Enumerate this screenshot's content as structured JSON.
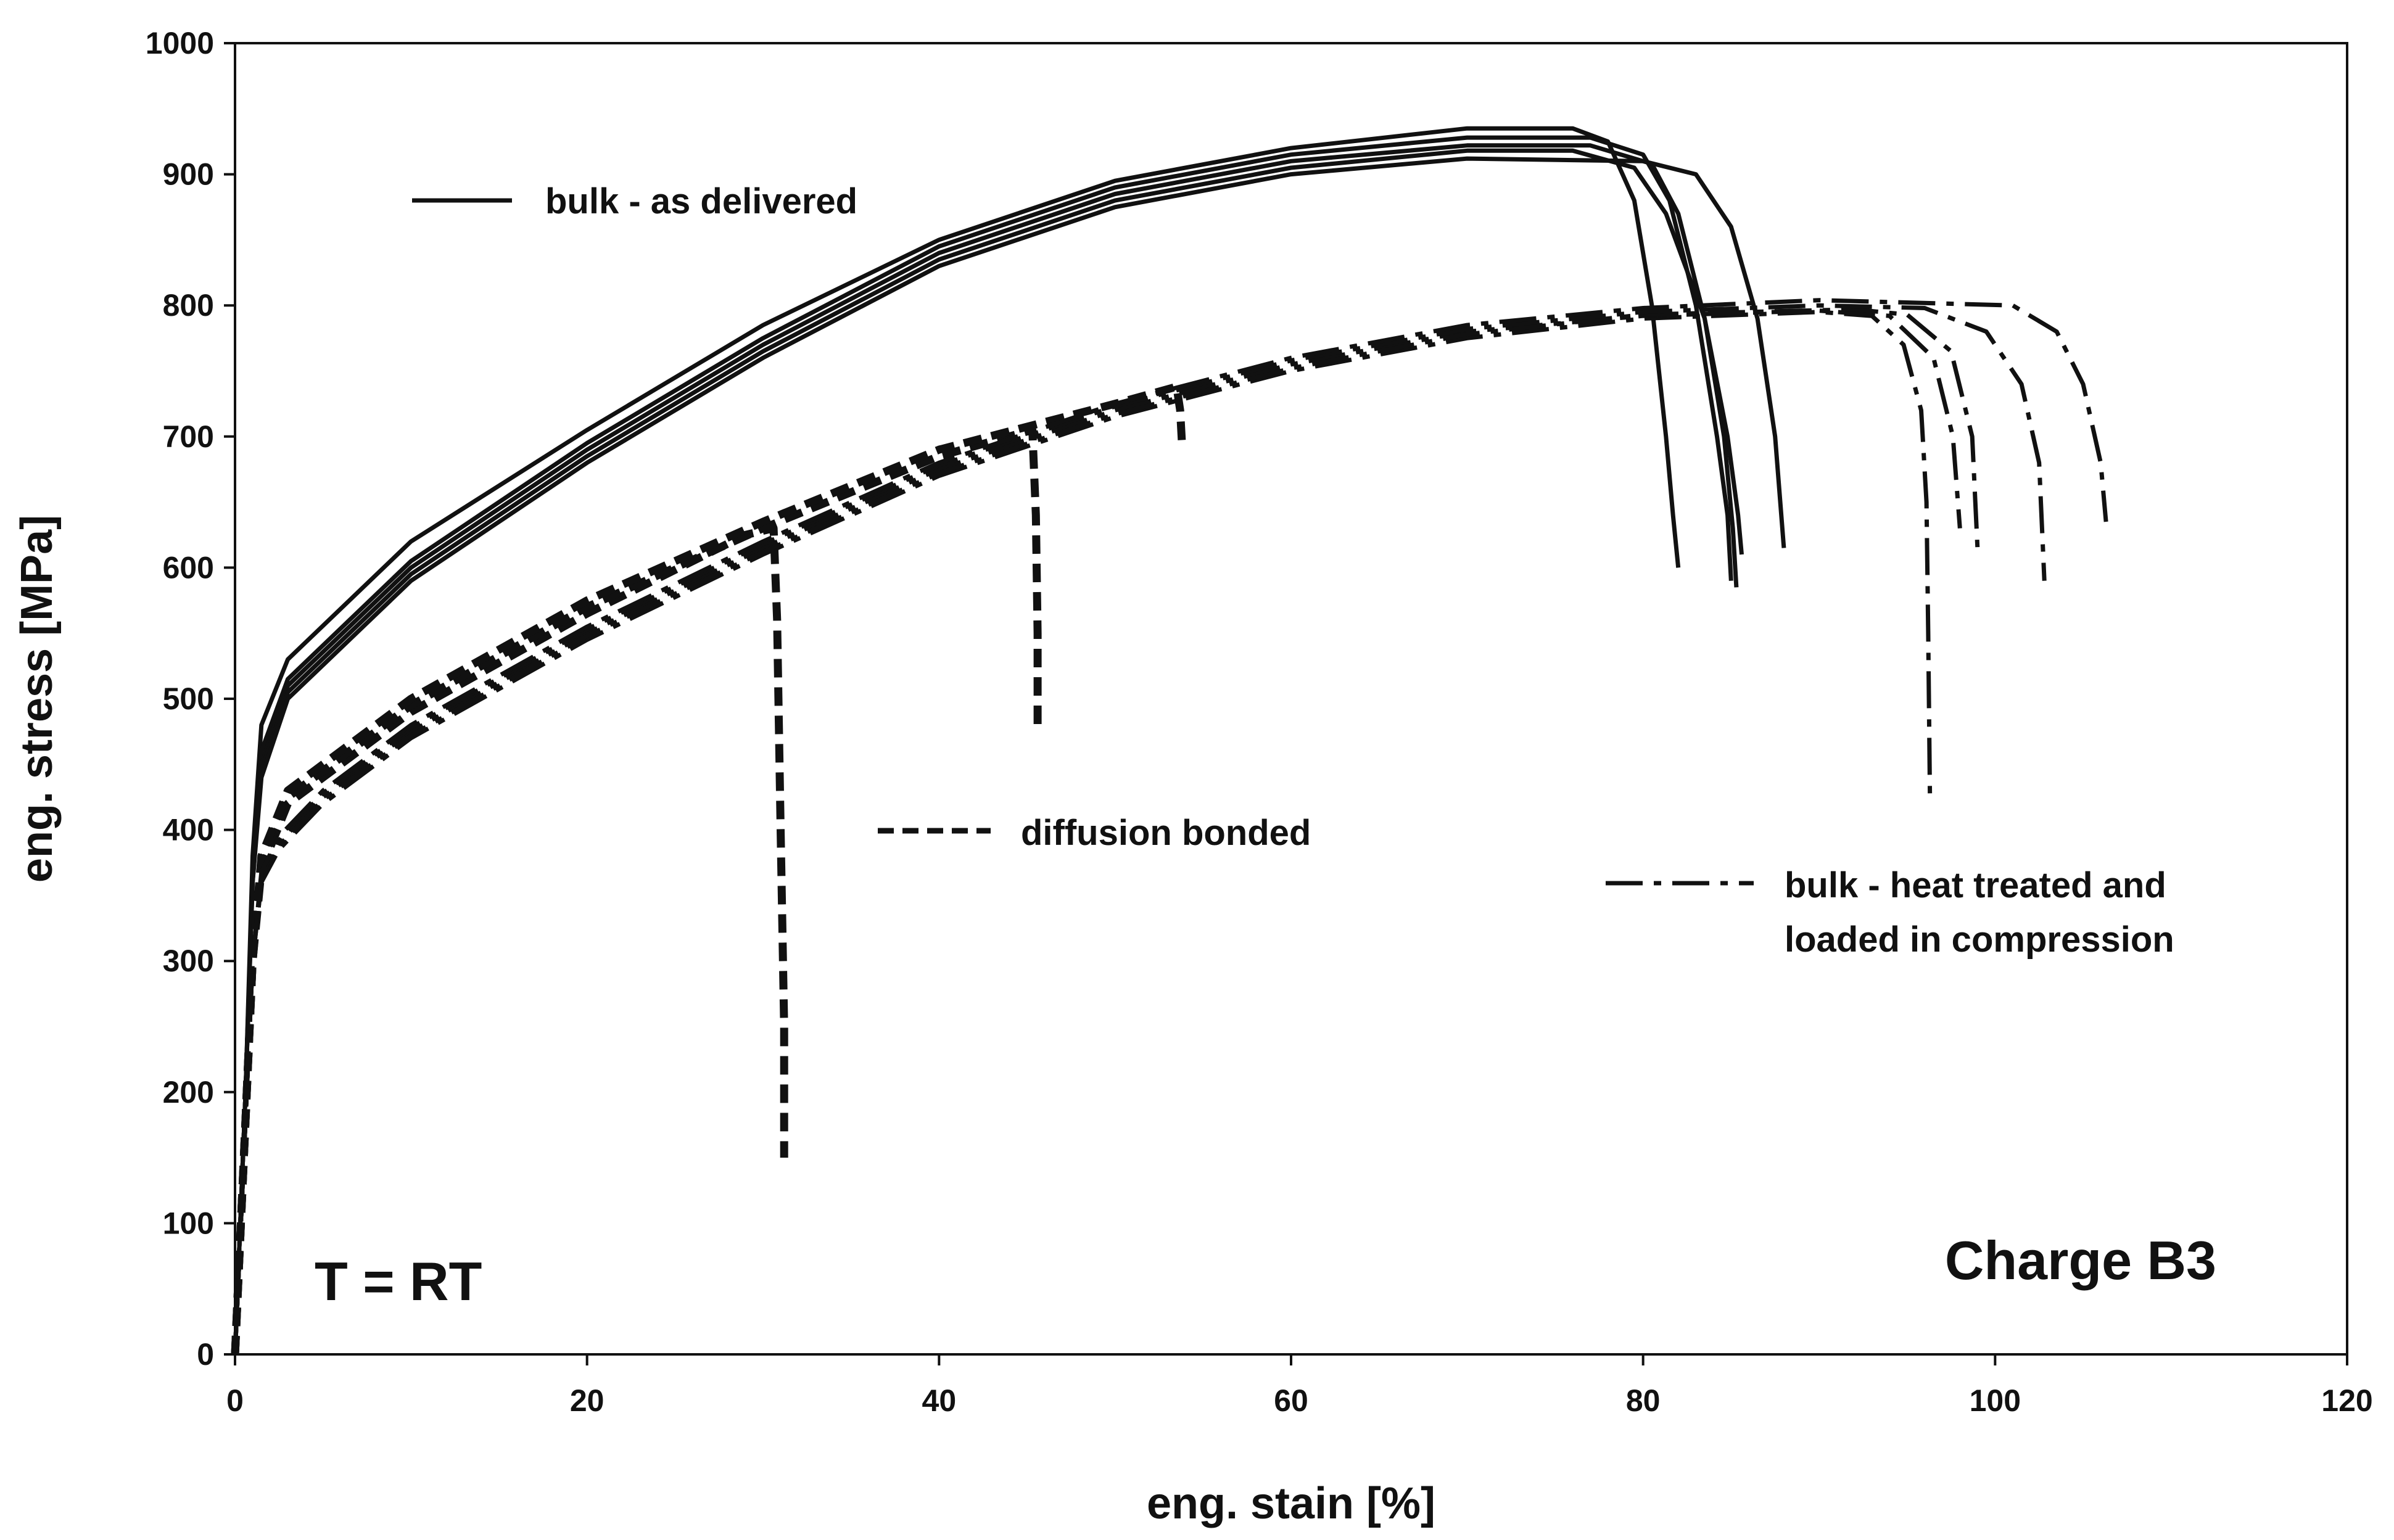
{
  "chart_data": {
    "type": "line",
    "title": "",
    "xlabel": "eng. stain [%]",
    "ylabel": "eng. stress [MPa]",
    "xlim": [
      0,
      120
    ],
    "ylim": [
      0,
      1000
    ],
    "xticks": [
      0,
      20,
      40,
      60,
      80,
      100,
      120
    ],
    "yticks": [
      0,
      100,
      200,
      300,
      400,
      500,
      600,
      700,
      800,
      900,
      1000
    ],
    "grid": false,
    "annotations": [
      "T = RT",
      "Charge B3"
    ],
    "legend_labels": {
      "bulk_as_delivered": "bulk - as delivered",
      "diffusion_bonded": "diffusion bonded",
      "heat_treated_line1": "bulk - heat treated and",
      "heat_treated_line2": "loaded in compression"
    },
    "series": [
      {
        "name": "bulk - as delivered #1",
        "group": "solid",
        "points": [
          [
            0,
            0
          ],
          [
            0.6,
            200
          ],
          [
            1.0,
            380
          ],
          [
            1.5,
            480
          ],
          [
            3,
            530
          ],
          [
            10,
            620
          ],
          [
            20,
            705
          ],
          [
            30,
            785
          ],
          [
            40,
            850
          ],
          [
            50,
            895
          ],
          [
            60,
            920
          ],
          [
            70,
            935
          ],
          [
            76,
            935
          ],
          [
            78,
            925
          ],
          [
            79.5,
            880
          ],
          [
            80.5,
            800
          ],
          [
            81.3,
            700
          ],
          [
            81.7,
            640
          ],
          [
            82,
            600
          ]
        ]
      },
      {
        "name": "bulk - as delivered #2",
        "group": "solid",
        "points": [
          [
            0,
            0
          ],
          [
            0.6,
            200
          ],
          [
            1.0,
            370
          ],
          [
            1.5,
            460
          ],
          [
            3,
            515
          ],
          [
            10,
            605
          ],
          [
            20,
            695
          ],
          [
            30,
            775
          ],
          [
            40,
            845
          ],
          [
            50,
            890
          ],
          [
            60,
            915
          ],
          [
            70,
            928
          ],
          [
            77,
            928
          ],
          [
            80,
            915
          ],
          [
            81.5,
            880
          ],
          [
            83,
            800
          ],
          [
            84.2,
            700
          ],
          [
            84.8,
            640
          ],
          [
            85,
            590
          ]
        ]
      },
      {
        "name": "bulk - as delivered #3",
        "group": "solid",
        "points": [
          [
            0,
            0
          ],
          [
            0.6,
            200
          ],
          [
            1.0,
            365
          ],
          [
            1.5,
            450
          ],
          [
            3,
            510
          ],
          [
            10,
            600
          ],
          [
            20,
            690
          ],
          [
            30,
            770
          ],
          [
            40,
            840
          ],
          [
            50,
            885
          ],
          [
            60,
            910
          ],
          [
            70,
            922
          ],
          [
            77,
            922
          ],
          [
            80.5,
            908
          ],
          [
            82,
            870
          ],
          [
            83.5,
            790
          ],
          [
            84.6,
            700
          ],
          [
            85.1,
            630
          ],
          [
            85.3,
            585
          ]
        ]
      },
      {
        "name": "bulk - as delivered #4",
        "group": "solid",
        "points": [
          [
            0,
            0
          ],
          [
            0.6,
            200
          ],
          [
            1.0,
            360
          ],
          [
            1.5,
            445
          ],
          [
            3,
            505
          ],
          [
            10,
            595
          ],
          [
            20,
            685
          ],
          [
            30,
            765
          ],
          [
            40,
            835
          ],
          [
            50,
            880
          ],
          [
            60,
            905
          ],
          [
            70,
            918
          ],
          [
            76,
            918
          ],
          [
            79.5,
            905
          ],
          [
            81.3,
            870
          ],
          [
            83.5,
            790
          ],
          [
            84.8,
            700
          ],
          [
            85.4,
            640
          ],
          [
            85.6,
            610
          ]
        ]
      },
      {
        "name": "bulk - as delivered #5",
        "group": "solid",
        "points": [
          [
            0,
            0
          ],
          [
            0.6,
            200
          ],
          [
            1.0,
            360
          ],
          [
            1.5,
            440
          ],
          [
            3,
            500
          ],
          [
            10,
            590
          ],
          [
            20,
            680
          ],
          [
            30,
            760
          ],
          [
            40,
            830
          ],
          [
            50,
            875
          ],
          [
            60,
            900
          ],
          [
            70,
            912
          ],
          [
            80,
            910
          ],
          [
            83,
            900
          ],
          [
            85,
            860
          ],
          [
            86.5,
            790
          ],
          [
            87.5,
            700
          ],
          [
            88,
            615
          ]
        ]
      },
      {
        "name": "diffusion bonded #1",
        "group": "dashed",
        "points": [
          [
            0,
            0
          ],
          [
            0.5,
            150
          ],
          [
            1.0,
            300
          ],
          [
            1.5,
            370
          ],
          [
            3,
            420
          ],
          [
            10,
            490
          ],
          [
            20,
            565
          ],
          [
            29,
            625
          ],
          [
            30.6,
            630
          ],
          [
            30.8,
            560
          ],
          [
            31,
            400
          ],
          [
            31.2,
            250
          ],
          [
            31.2,
            150
          ]
        ]
      },
      {
        "name": "diffusion bonded #2",
        "group": "dashed",
        "points": [
          [
            0,
            0
          ],
          [
            0.5,
            150
          ],
          [
            1.0,
            300
          ],
          [
            1.5,
            375
          ],
          [
            3,
            425
          ],
          [
            10,
            495
          ],
          [
            20,
            570
          ],
          [
            30,
            630
          ],
          [
            40,
            685
          ],
          [
            45.3,
            705
          ],
          [
            45.5,
            640
          ],
          [
            45.6,
            550
          ],
          [
            45.6,
            480
          ]
        ]
      },
      {
        "name": "diffusion bonded #3",
        "group": "dashed",
        "points": [
          [
            0,
            0
          ],
          [
            0.5,
            150
          ],
          [
            1.0,
            300
          ],
          [
            1.5,
            380
          ],
          [
            3,
            430
          ],
          [
            10,
            500
          ],
          [
            20,
            575
          ],
          [
            30,
            635
          ],
          [
            40,
            690
          ],
          [
            50,
            725
          ],
          [
            53.5,
            738
          ],
          [
            53.7,
            720
          ],
          [
            53.8,
            695
          ]
        ]
      },
      {
        "name": "bulk - heat treated #1",
        "group": "dashdot",
        "points": [
          [
            0,
            0
          ],
          [
            0.5,
            150
          ],
          [
            1.0,
            300
          ],
          [
            1.5,
            360
          ],
          [
            2.5,
            385
          ],
          [
            5,
            420
          ],
          [
            10,
            470
          ],
          [
            20,
            545
          ],
          [
            30,
            610
          ],
          [
            40,
            670
          ],
          [
            50,
            715
          ],
          [
            60,
            750
          ],
          [
            70,
            775
          ],
          [
            80,
            790
          ],
          [
            90,
            795
          ],
          [
            93,
            792
          ],
          [
            94.8,
            770
          ],
          [
            95.8,
            720
          ],
          [
            96.1,
            650
          ],
          [
            96.2,
            550
          ],
          [
            96.3,
            420
          ]
        ]
      },
      {
        "name": "bulk - heat treated #2",
        "group": "dashdot",
        "points": [
          [
            0,
            0
          ],
          [
            0.5,
            150
          ],
          [
            1.0,
            300
          ],
          [
            1.5,
            365
          ],
          [
            2.5,
            390
          ],
          [
            5,
            425
          ],
          [
            10,
            475
          ],
          [
            20,
            550
          ],
          [
            30,
            615
          ],
          [
            40,
            675
          ],
          [
            50,
            720
          ],
          [
            60,
            755
          ],
          [
            70,
            780
          ],
          [
            80,
            792
          ],
          [
            90,
            796
          ],
          [
            94,
            792
          ],
          [
            96.5,
            760
          ],
          [
            97.6,
            700
          ],
          [
            98,
            630
          ]
        ]
      },
      {
        "name": "bulk - heat treated #3",
        "group": "dashdot",
        "points": [
          [
            0,
            0
          ],
          [
            0.5,
            150
          ],
          [
            1.0,
            300
          ],
          [
            1.5,
            360
          ],
          [
            2.5,
            388
          ],
          [
            5,
            423
          ],
          [
            10,
            472
          ],
          [
            20,
            548
          ],
          [
            30,
            612
          ],
          [
            40,
            672
          ],
          [
            50,
            717
          ],
          [
            60,
            752
          ],
          [
            70,
            778
          ],
          [
            80,
            793
          ],
          [
            92,
            797
          ],
          [
            95,
            793
          ],
          [
            97.5,
            765
          ],
          [
            98.7,
            700
          ],
          [
            99,
            615
          ]
        ]
      },
      {
        "name": "bulk - heat treated #4",
        "group": "dashdot",
        "points": [
          [
            0,
            0
          ],
          [
            0.5,
            150
          ],
          [
            1.0,
            300
          ],
          [
            1.5,
            365
          ],
          [
            2.5,
            392
          ],
          [
            5,
            428
          ],
          [
            10,
            478
          ],
          [
            20,
            553
          ],
          [
            30,
            618
          ],
          [
            40,
            678
          ],
          [
            50,
            723
          ],
          [
            60,
            758
          ],
          [
            70,
            782
          ],
          [
            80,
            795
          ],
          [
            90,
            800
          ],
          [
            96,
            798
          ],
          [
            99.5,
            780
          ],
          [
            101.5,
            740
          ],
          [
            102.5,
            680
          ],
          [
            102.8,
            590
          ]
        ]
      },
      {
        "name": "bulk - heat treated #5",
        "group": "dashdot",
        "points": [
          [
            0,
            0
          ],
          [
            0.5,
            150
          ],
          [
            1.0,
            300
          ],
          [
            1.5,
            368
          ],
          [
            2.5,
            395
          ],
          [
            5,
            430
          ],
          [
            10,
            480
          ],
          [
            20,
            555
          ],
          [
            30,
            620
          ],
          [
            40,
            680
          ],
          [
            50,
            725
          ],
          [
            60,
            760
          ],
          [
            70,
            785
          ],
          [
            80,
            798
          ],
          [
            90,
            804
          ],
          [
            101,
            800
          ],
          [
            103.5,
            780
          ],
          [
            105,
            740
          ],
          [
            106,
            680
          ],
          [
            106.3,
            635
          ]
        ]
      }
    ]
  }
}
